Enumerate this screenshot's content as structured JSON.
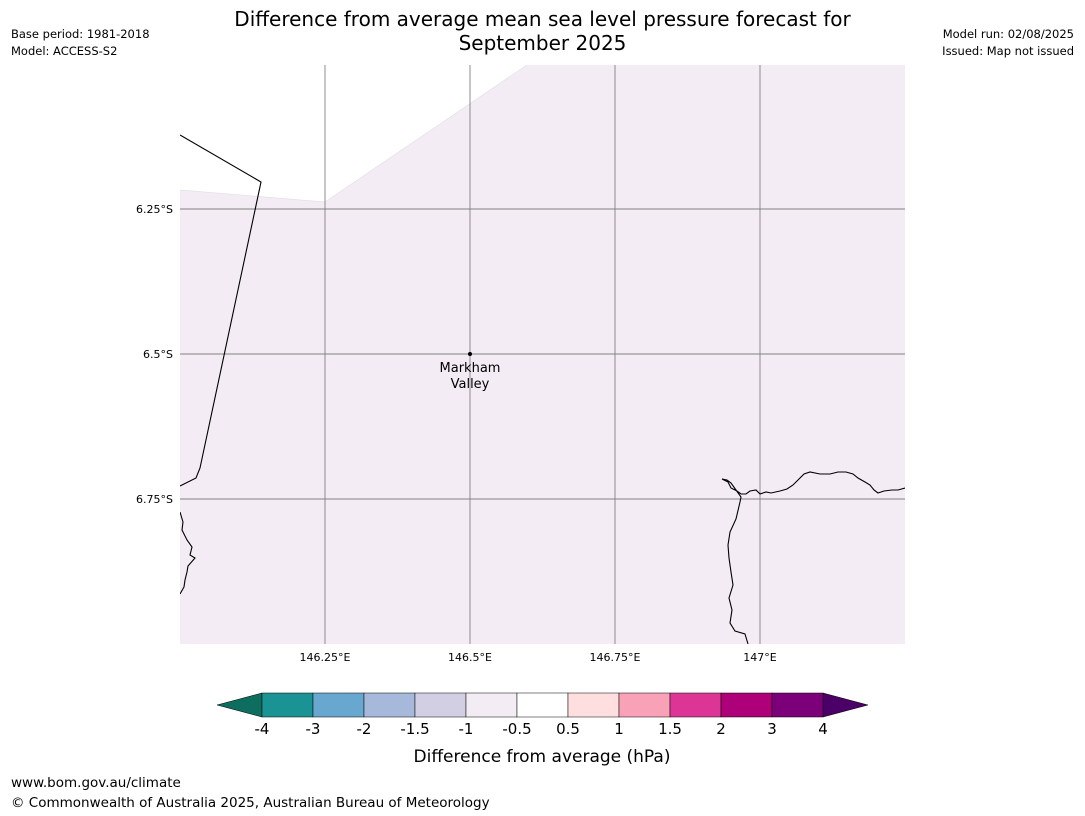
{
  "header": {
    "base_period": "Base period: 1981-2018",
    "model": "Model: ACCESS-S2",
    "title_line1": "Difference from average mean sea level pressure forecast for",
    "title_line2": "September 2025",
    "model_run": "Model run: 02/08/2025",
    "issued": "Issued: Map not issued"
  },
  "map": {
    "fill_color": "#f3ecf5",
    "grid_color": "#808080",
    "lat_labels": [
      "6.25°S",
      "6.5°S",
      "6.75°S"
    ],
    "lon_labels": [
      "146.25°E",
      "146.5°E",
      "146.75°E",
      "147°E"
    ],
    "place": {
      "name_line1": "Markham",
      "name_line2": "Valley"
    }
  },
  "colorbar": {
    "title": "Difference from average (hPa)",
    "labels": [
      "-4",
      "-3",
      "-2",
      "-1.5",
      "-1",
      "-0.5",
      "0.5",
      "1",
      "1.5",
      "2",
      "3",
      "4"
    ],
    "colors": [
      "#1a9395",
      "#68a8d0",
      "#a7b9db",
      "#d2cfe4",
      "#f3ecf5",
      "#ffffff",
      "#fedede",
      "#f9a1b6",
      "#dc3595",
      "#ad0079",
      "#7c0079"
    ],
    "under_color": "#0d6e5f",
    "over_color": "#4b0068"
  },
  "footer": {
    "url": "www.bom.gov.au/climate",
    "copyright": "© Commonwealth of Australia 2025, Australian Bureau of Meteorology"
  }
}
